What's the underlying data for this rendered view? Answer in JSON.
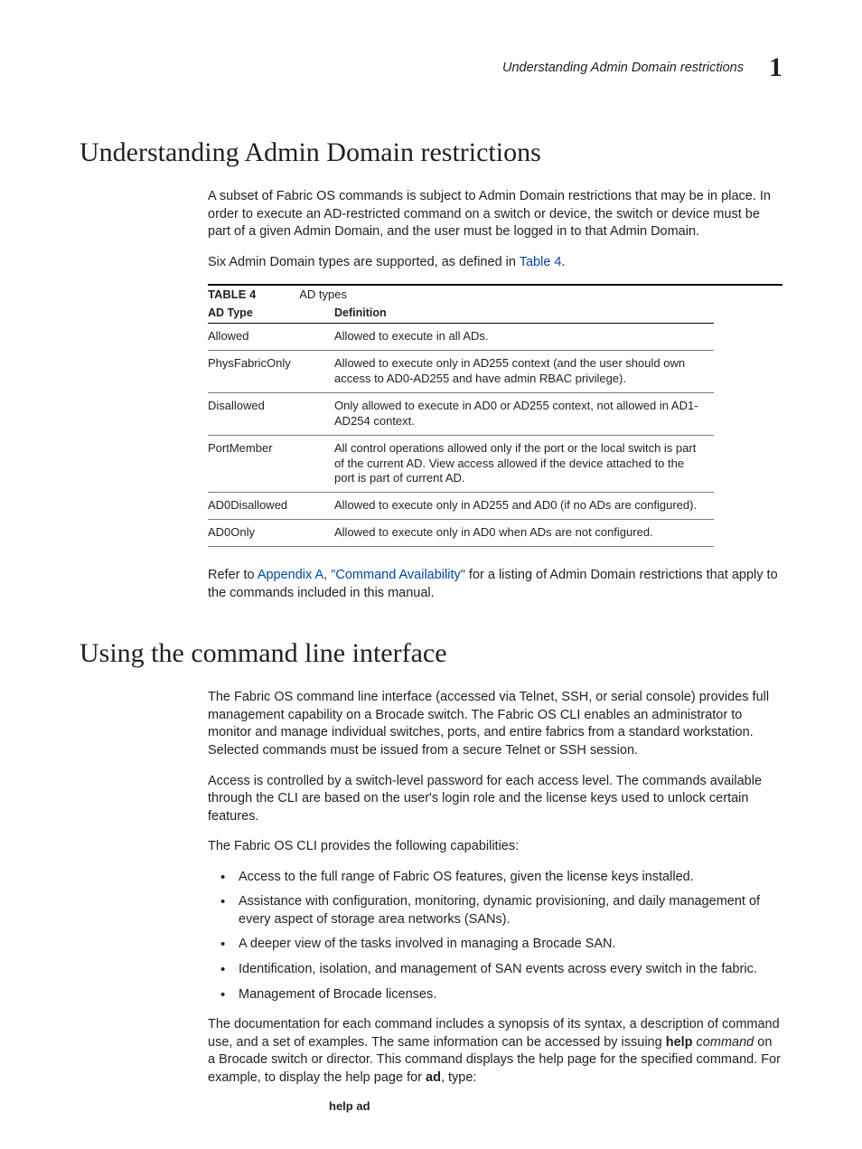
{
  "header": {
    "running_title": "Understanding Admin Domain restrictions",
    "chapter_number": "1"
  },
  "section1": {
    "title": "Understanding Admin Domain restrictions",
    "p1": "A subset of Fabric OS commands is subject to Admin Domain restrictions that may be in place. In order to execute an AD-restricted command on a switch or device, the switch or device must be part of a given Admin Domain, and the user must be logged in to that Admin Domain.",
    "p2_pre": "Six Admin Domain types are supported, as defined in ",
    "p2_link": "Table 4",
    "p2_post": ".",
    "table": {
      "label": "TABLE 4",
      "caption": "AD types",
      "col1": "AD Type",
      "col2": "Definition",
      "rows": [
        {
          "t": "Allowed",
          "d": "Allowed to execute in all ADs."
        },
        {
          "t": "PhysFabricOnly",
          "d": "Allowed to execute only in AD255 context (and the user should own access to AD0-AD255 and have admin RBAC privilege)."
        },
        {
          "t": "Disallowed",
          "d": "Only allowed to execute in AD0 or AD255 context, not allowed in AD1-AD254 context."
        },
        {
          "t": "PortMember",
          "d": "All control operations allowed only if the port or the local switch is part of the current AD. View access allowed if the device attached to the port is part of current AD."
        },
        {
          "t": "AD0Disallowed",
          "d": "Allowed to execute only in AD255 and AD0 (if no ADs are configured)."
        },
        {
          "t": "AD0Only",
          "d": "Allowed to execute only in AD0 when ADs are not configured."
        }
      ]
    },
    "p3_pre": "Refer to ",
    "p3_link": "Appendix A, \"Command Availability\"",
    "p3_post": " for a listing of Admin Domain restrictions that apply to the commands included in this manual."
  },
  "section2": {
    "title": "Using the command line interface",
    "p1": "The Fabric OS command line interface (accessed via Telnet, SSH, or serial console) provides full management capability on a Brocade switch. The Fabric OS CLI enables an administrator to monitor and manage individual switches, ports, and entire fabrics from a standard workstation. Selected commands must be issued from a secure Telnet or SSH session.",
    "p2": "Access is controlled by a switch-level password for each access level. The commands available through the CLI are based on the user's login role and the license keys used to unlock certain features.",
    "p3": "The Fabric OS CLI provides the following capabilities:",
    "bullets": [
      "Access to the full range of Fabric OS features, given the license keys installed.",
      "Assistance with configuration, monitoring, dynamic provisioning, and daily management of every aspect of storage area networks (SANs).",
      "A deeper view of the tasks involved in managing a Brocade SAN.",
      "Identification, isolation, and management of SAN events across every switch in the fabric.",
      "Management of Brocade licenses."
    ],
    "p4_pre": "The documentation for each command includes a synopsis of its syntax, a description of command use, and a set of examples. The same information can be accessed by issuing ",
    "p4_bold": "help",
    "p4_ital": " command",
    "p4_mid": " on a Brocade switch or director. This command displays the help page for the specified command. For example, to display the help page for ",
    "p4_bold2": "ad",
    "p4_post": ", type:",
    "code": "help ad"
  }
}
